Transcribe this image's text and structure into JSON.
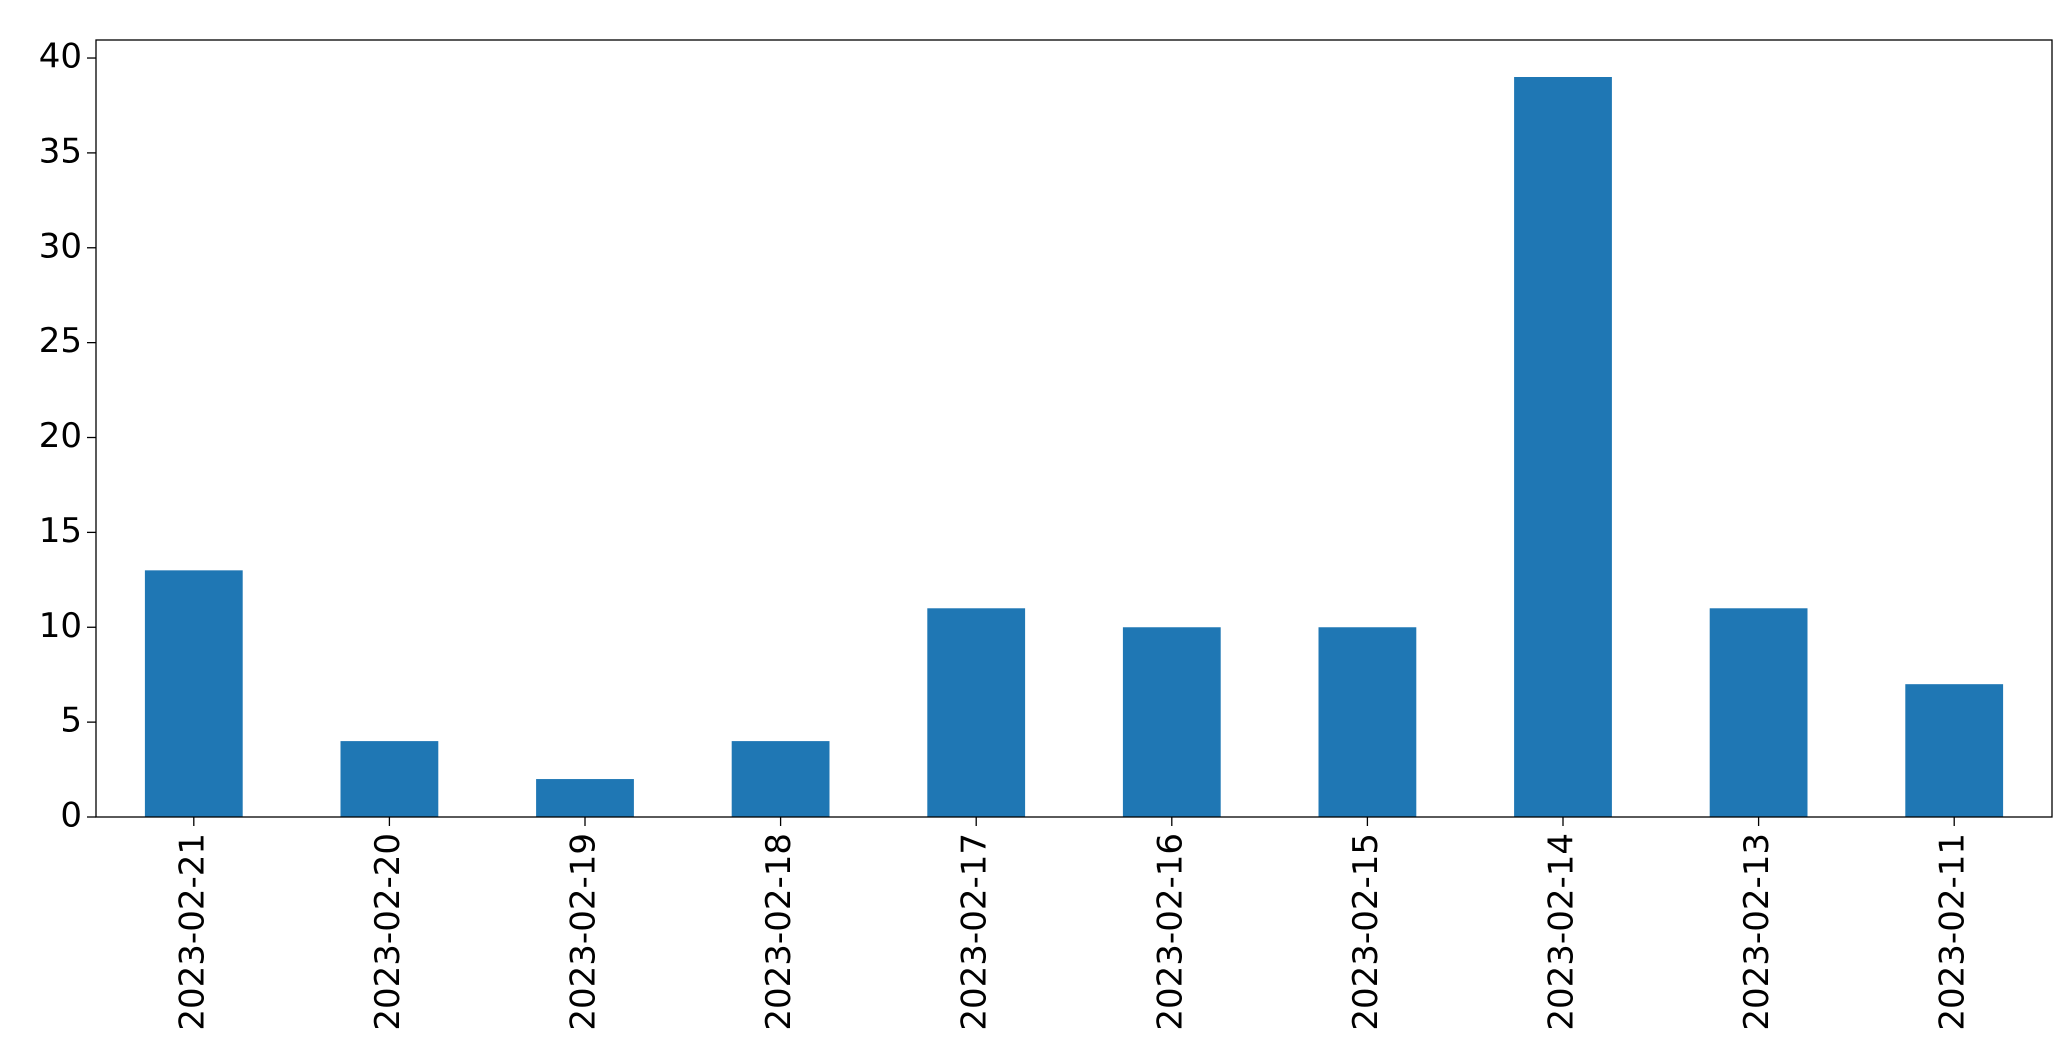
{
  "chart_data": {
    "type": "bar",
    "categories": [
      "2023-02-21",
      "2023-02-20",
      "2023-02-19",
      "2023-02-18",
      "2023-02-17",
      "2023-02-16",
      "2023-02-15",
      "2023-02-14",
      "2023-02-13",
      "2023-02-11"
    ],
    "values": [
      13,
      4,
      2,
      4,
      11,
      10,
      10,
      39,
      11,
      7
    ],
    "color": "#1f77b4",
    "ylim": [
      0,
      40.95
    ],
    "yticks": [
      0,
      5,
      10,
      15,
      20,
      25,
      30,
      35,
      40
    ],
    "grid": false
  }
}
